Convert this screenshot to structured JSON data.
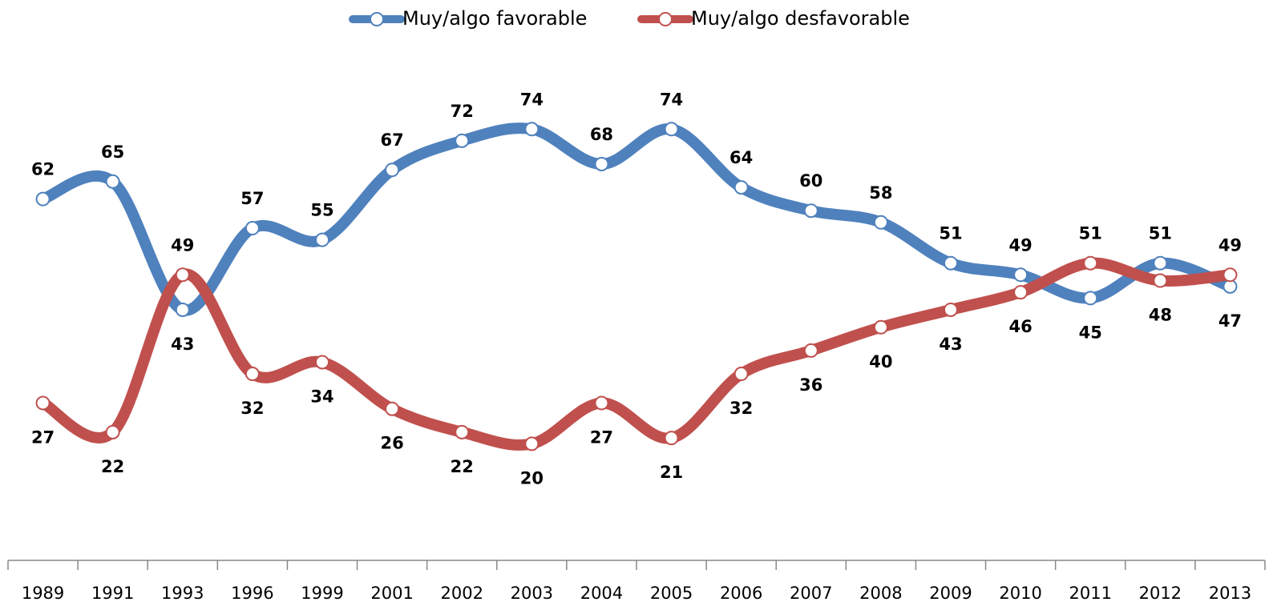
{
  "chart_data": {
    "type": "line",
    "categories": [
      "1989",
      "1991",
      "1993",
      "1996",
      "1999",
      "2001",
      "2002",
      "2003",
      "2004",
      "2005",
      "2006",
      "2007",
      "2008",
      "2009",
      "2010",
      "2011",
      "2012",
      "2013"
    ],
    "series": [
      {
        "name": "Muy/algo favorable",
        "color": "#4f81bd",
        "values": [
          62,
          65,
          43,
          57,
          55,
          67,
          72,
          74,
          68,
          74,
          64,
          60,
          58,
          51,
          49,
          45,
          51,
          47
        ]
      },
      {
        "name": "Muy/algo desfavorable",
        "color": "#c0504d",
        "values": [
          27,
          22,
          49,
          32,
          34,
          26,
          22,
          20,
          27,
          21,
          32,
          36,
          40,
          43,
          46,
          51,
          48,
          49
        ]
      }
    ],
    "ylim": [
      0,
      80
    ],
    "legend": "top"
  }
}
